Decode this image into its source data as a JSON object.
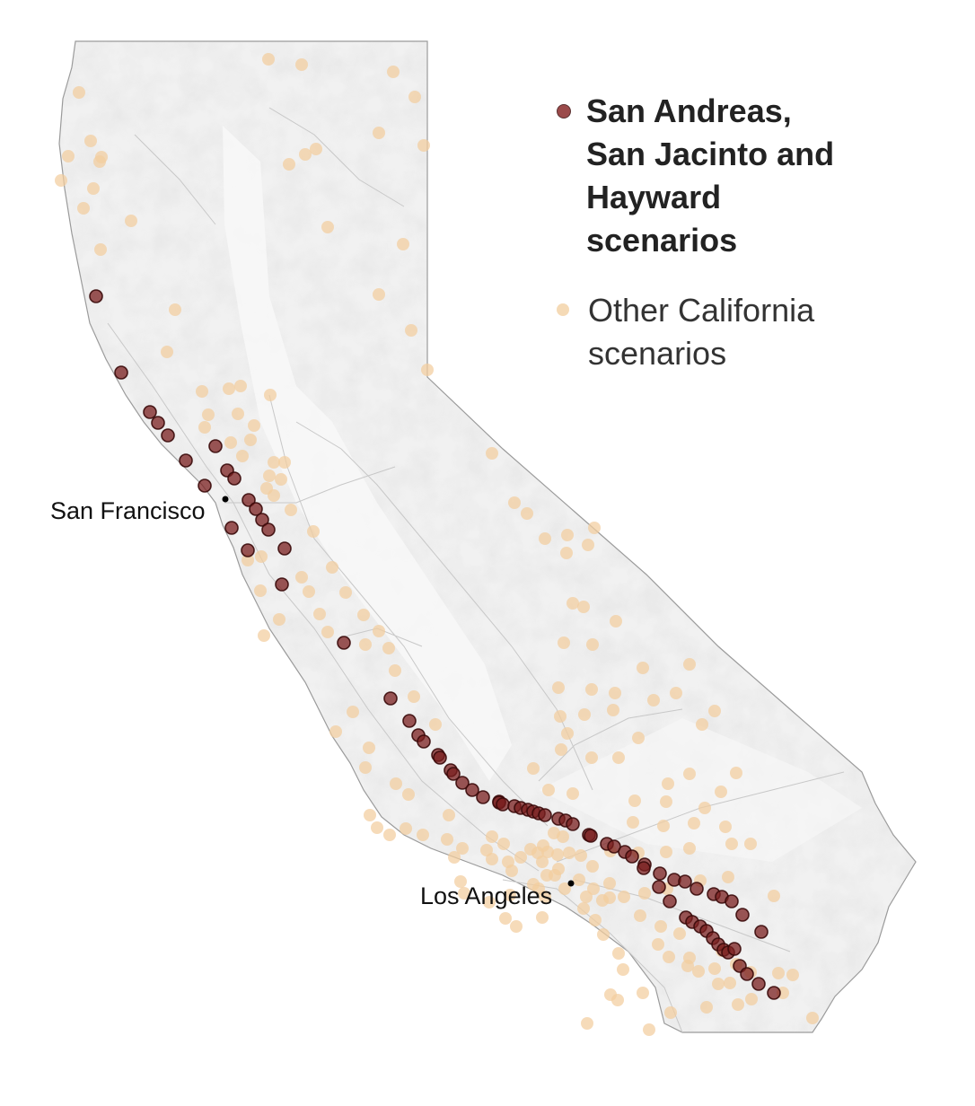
{
  "legend": {
    "primary_label": "San Andreas, San Jacinto and Hayward scenarios",
    "other_label": "Other California scenarios",
    "primary_color": "#7a1f1f",
    "other_color": "#f2cd9e"
  },
  "cities": {
    "san_francisco": "San Francisco",
    "los_angeles": "Los Angeles"
  },
  "colors": {
    "land": "#f1f1f1",
    "border": "#9a9a9a",
    "roads": "#cccccc",
    "city_marker": "#000000"
  }
}
